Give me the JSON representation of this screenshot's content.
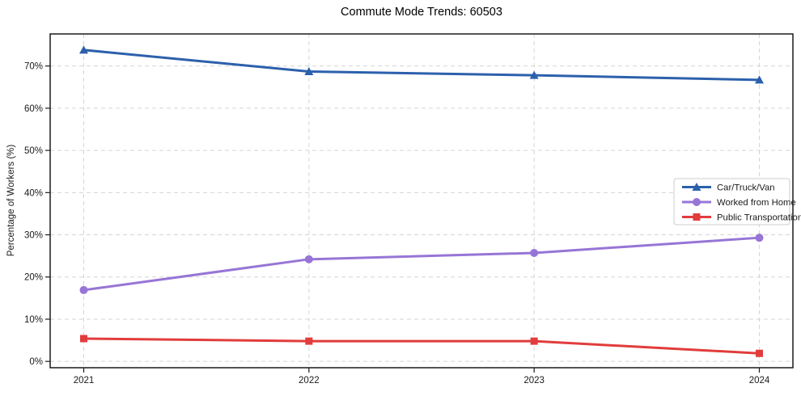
{
  "page": {
    "title": "Commute Mode Trends: 60503"
  },
  "chart_data": {
    "type": "line",
    "title": "Commute Mode Trends: 60503",
    "xlabel": "",
    "ylabel": "Percentage of Workers (%)",
    "categories": [
      "2021",
      "2022",
      "2023",
      "2024"
    ],
    "series": [
      {
        "name": "Car/Truck/Van",
        "values": [
          73.8,
          68.7,
          67.8,
          66.7
        ],
        "color": "#2c60ac",
        "marker": "triangle"
      },
      {
        "name": "Worked from Home",
        "values": [
          16.9,
          24.2,
          25.7,
          29.3
        ],
        "color": "#9775d6",
        "marker": "circle"
      },
      {
        "name": "Public Transportation",
        "values": [
          5.4,
          4.8,
          4.8,
          1.9
        ],
        "color": "#e23c3c",
        "marker": "square"
      }
    ],
    "yticks": [
      0,
      10,
      20,
      30,
      40,
      50,
      60,
      70
    ],
    "ytick_labels": [
      "0%",
      "10%",
      "20%",
      "30%",
      "40%",
      "50%",
      "60%",
      "70%"
    ],
    "ylim": [
      -1.5,
      77.6
    ],
    "grid": true,
    "grid_style": "dashed",
    "legend_position": "center-right"
  }
}
